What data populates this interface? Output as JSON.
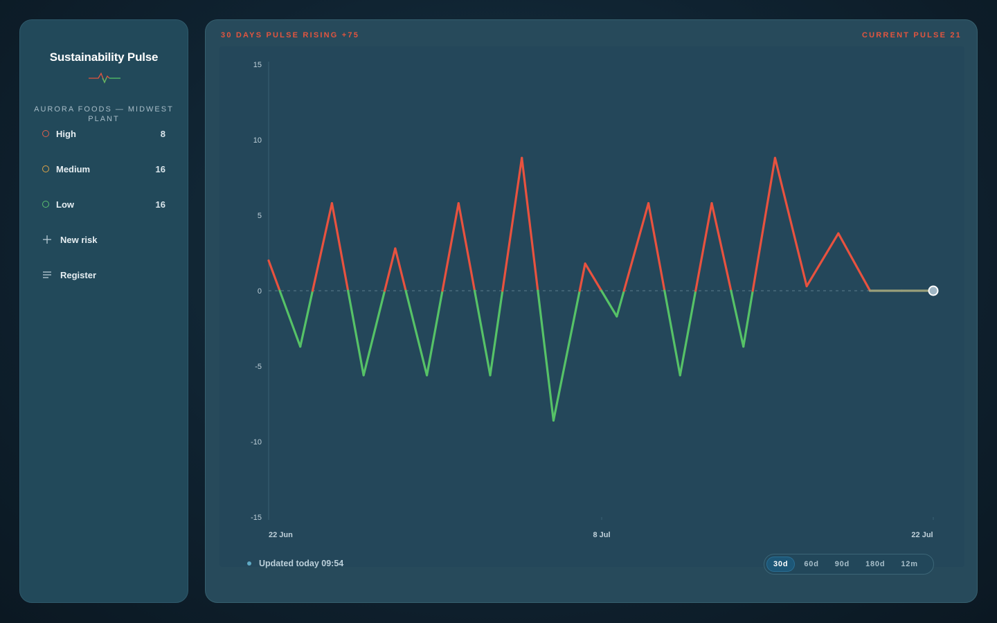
{
  "sidebar": {
    "title": "Sustainability Pulse",
    "org": "AURORA FOODS — MIDWEST PLANT",
    "levels": [
      {
        "label": "High",
        "count": "8",
        "color": "#e2604c"
      },
      {
        "label": "Medium",
        "count": "16",
        "color": "#e0a548"
      },
      {
        "label": "Low",
        "count": "16",
        "color": "#5cc070"
      }
    ],
    "actions": [
      {
        "label": "New risk",
        "icon": "plus-icon"
      },
      {
        "label": "Register",
        "icon": "list-icon"
      }
    ]
  },
  "header": {
    "left": "30 DAYS PULSE RISING +75",
    "right": "CURRENT PULSE 21"
  },
  "footer": {
    "updated": "Updated today 09:54",
    "ranges": [
      "30d",
      "60d",
      "90d",
      "180d",
      "12m"
    ],
    "active_range": "30d"
  },
  "colors": {
    "positive": "#e8523f",
    "negative": "#56c267",
    "accent": "#e3553f"
  },
  "chart_data": {
    "type": "line",
    "title": "",
    "xlabel": "",
    "ylabel": "",
    "ylim": [
      -15,
      15
    ],
    "yticks": [
      15,
      10,
      5,
      0,
      -5,
      -10,
      -15
    ],
    "x_tick_labels": [
      "22 Jun",
      "8 Jul",
      "22 Jul"
    ],
    "series": [
      {
        "values": [
          2,
          -3.7,
          5.8,
          -5.6,
          2.8,
          -5.6,
          5.8,
          -5.6,
          8.8,
          -8.6,
          1.8,
          -1.7,
          5.8,
          -5.6,
          5.8,
          -3.7,
          8.8,
          0.3,
          3.8,
          0,
          0,
          0
        ]
      }
    ]
  }
}
